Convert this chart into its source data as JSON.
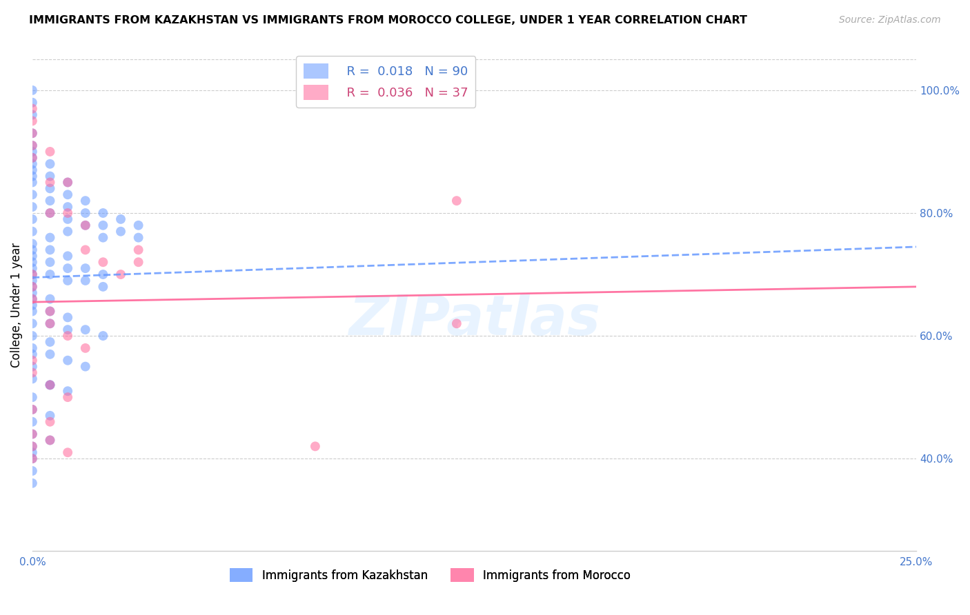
{
  "title": "IMMIGRANTS FROM KAZAKHSTAN VS IMMIGRANTS FROM MOROCCO COLLEGE, UNDER 1 YEAR CORRELATION CHART",
  "source": "Source: ZipAtlas.com",
  "ylabel": "College, Under 1 year",
  "right_yticks": [
    "100.0%",
    "80.0%",
    "60.0%",
    "40.0%"
  ],
  "right_ytick_vals": [
    1.0,
    0.8,
    0.6,
    0.4
  ],
  "legend_label_kaz": "Immigrants from Kazakhstan",
  "legend_label_mor": "Immigrants from Morocco",
  "color_kaz": "#6699ff",
  "color_mor": "#ff6699",
  "watermark": "ZIPatlas",
  "xlim": [
    0.0,
    0.25
  ],
  "ylim": [
    0.25,
    1.05
  ],
  "kaz_x": [
    0.0,
    0.0,
    0.0,
    0.0,
    0.0,
    0.0,
    0.0,
    0.0,
    0.0,
    0.0,
    0.005,
    0.005,
    0.005,
    0.005,
    0.005,
    0.01,
    0.01,
    0.01,
    0.01,
    0.01,
    0.015,
    0.015,
    0.015,
    0.02,
    0.02,
    0.02,
    0.025,
    0.025,
    0.03,
    0.03,
    0.0,
    0.0,
    0.0,
    0.0,
    0.0,
    0.0,
    0.0,
    0.0,
    0.0,
    0.0,
    0.005,
    0.005,
    0.005,
    0.005,
    0.01,
    0.01,
    0.01,
    0.015,
    0.015,
    0.02,
    0.02,
    0.0,
    0.0,
    0.0,
    0.0,
    0.0,
    0.0,
    0.005,
    0.005,
    0.005,
    0.01,
    0.01,
    0.015,
    0.02,
    0.0,
    0.0,
    0.0,
    0.0,
    0.005,
    0.005,
    0.01,
    0.015,
    0.0,
    0.0,
    0.0,
    0.005,
    0.01,
    0.0,
    0.0,
    0.005,
    0.0,
    0.0,
    0.005,
    0.0,
    0.0,
    0.0,
    0.005,
    0.0,
    0.0
  ],
  "kaz_y": [
    1.0,
    0.98,
    0.96,
    0.93,
    0.91,
    0.9,
    0.89,
    0.88,
    0.87,
    0.86,
    0.88,
    0.86,
    0.84,
    0.82,
    0.8,
    0.85,
    0.83,
    0.81,
    0.79,
    0.77,
    0.82,
    0.8,
    0.78,
    0.8,
    0.78,
    0.76,
    0.79,
    0.77,
    0.78,
    0.76,
    0.85,
    0.83,
    0.81,
    0.79,
    0.77,
    0.75,
    0.74,
    0.73,
    0.72,
    0.71,
    0.76,
    0.74,
    0.72,
    0.7,
    0.73,
    0.71,
    0.69,
    0.71,
    0.69,
    0.7,
    0.68,
    0.7,
    0.69,
    0.68,
    0.67,
    0.66,
    0.65,
    0.66,
    0.64,
    0.62,
    0.63,
    0.61,
    0.61,
    0.6,
    0.64,
    0.62,
    0.6,
    0.58,
    0.59,
    0.57,
    0.56,
    0.55,
    0.57,
    0.55,
    0.53,
    0.52,
    0.51,
    0.5,
    0.48,
    0.47,
    0.46,
    0.44,
    0.43,
    0.42,
    0.41,
    0.4,
    0.52,
    0.38,
    0.36
  ],
  "mor_x": [
    0.0,
    0.0,
    0.0,
    0.0,
    0.0,
    0.005,
    0.005,
    0.005,
    0.01,
    0.01,
    0.015,
    0.015,
    0.02,
    0.025,
    0.03,
    0.03,
    0.0,
    0.0,
    0.0,
    0.005,
    0.005,
    0.01,
    0.015,
    0.12,
    0.0,
    0.0,
    0.005,
    0.01,
    0.0,
    0.005,
    0.0,
    0.005,
    0.0,
    0.01,
    0.08,
    0.12,
    0.0
  ],
  "mor_y": [
    0.97,
    0.95,
    0.93,
    0.91,
    0.89,
    0.9,
    0.85,
    0.8,
    0.85,
    0.8,
    0.78,
    0.74,
    0.72,
    0.7,
    0.74,
    0.72,
    0.7,
    0.68,
    0.66,
    0.64,
    0.62,
    0.6,
    0.58,
    0.62,
    0.56,
    0.54,
    0.52,
    0.5,
    0.48,
    0.46,
    0.44,
    0.43,
    0.42,
    0.41,
    0.42,
    0.82,
    0.4
  ],
  "kaz_trend_x": [
    0.0,
    0.25
  ],
  "kaz_trend_y": [
    0.695,
    0.745
  ],
  "mor_trend_x": [
    0.0,
    0.25
  ],
  "mor_trend_y": [
    0.655,
    0.68
  ]
}
